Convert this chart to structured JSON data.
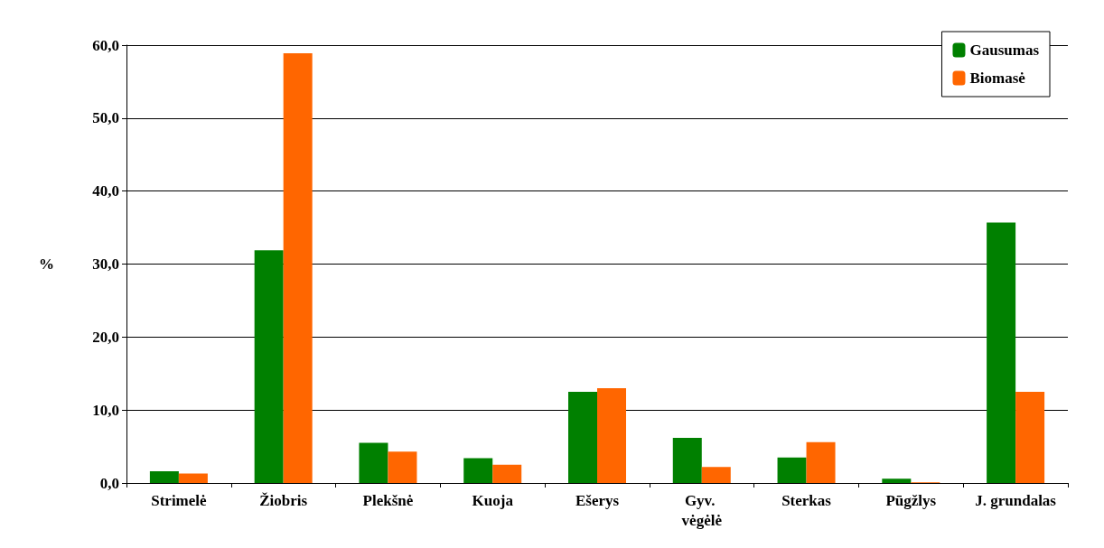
{
  "chart_data": {
    "type": "bar",
    "ylabel": "%",
    "categories": [
      "Strimelė",
      "Žiobris",
      "Plekšnė",
      "Kuoja",
      "Ešerys",
      "Gyv. vėgėlė",
      "Sterkas",
      "Pūgžlys",
      "J. grundalas"
    ],
    "series": [
      {
        "name": "Gausumas",
        "color": "#008000",
        "values": [
          1.6,
          31.9,
          5.5,
          3.4,
          12.5,
          6.2,
          3.5,
          0.6,
          35.7
        ]
      },
      {
        "name": "Biomasė",
        "color": "#ff6600",
        "values": [
          1.3,
          58.9,
          4.3,
          2.5,
          13.0,
          2.2,
          5.6,
          0.1,
          12.5
        ]
      }
    ],
    "ylim": [
      0,
      60
    ],
    "yticks": [
      {
        "value": 0,
        "label": "0,0"
      },
      {
        "value": 10,
        "label": "10,0"
      },
      {
        "value": 20,
        "label": "20,0"
      },
      {
        "value": 30,
        "label": "30,0"
      },
      {
        "value": 40,
        "label": "40,0"
      },
      {
        "value": 50,
        "label": "50,0"
      },
      {
        "value": 60,
        "label": "60,0"
      }
    ],
    "grid": "y",
    "legend": "top right"
  }
}
